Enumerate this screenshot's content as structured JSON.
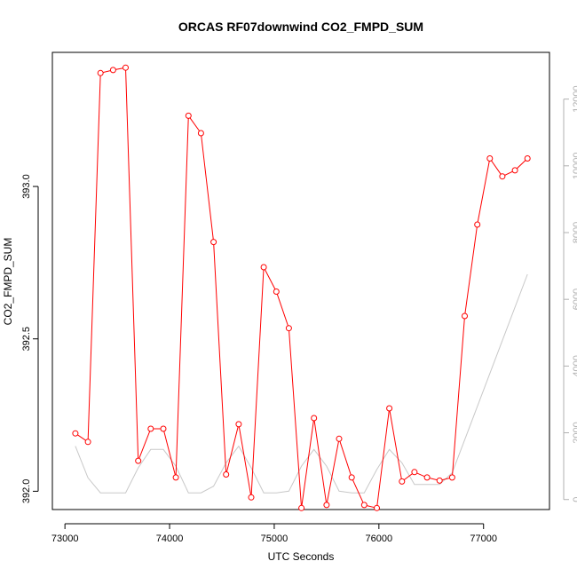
{
  "chart_data": {
    "type": "line",
    "title": "ORCAS RF07downwind CO2_FMPD_SUM",
    "xlabel": "UTC Seconds",
    "ylabel": "CO2_FMPD_SUM",
    "xlim": [
      72880,
      77630
    ],
    "ylim": [
      391.94,
      393.44
    ],
    "y2lim": [
      -300,
      13400
    ],
    "x_ticks": [
      73000,
      74000,
      75000,
      76000,
      77000
    ],
    "y_ticks": [
      392.0,
      392.5,
      393.0
    ],
    "y_tick_labels": [
      "392.0",
      "392.5",
      "393.0"
    ],
    "y2_ticks": [
      0,
      2000,
      4000,
      6000,
      8000,
      10000,
      12000
    ],
    "grid": false,
    "legend": "none",
    "colors": {
      "primary": "#ff0000",
      "secondary": "#c8c8c8",
      "axis": "#000000",
      "right_axis": "#b0b0b0"
    },
    "series": [
      {
        "axis": "left",
        "color": "#ff0000",
        "markers": "open-circle",
        "x": [
          73100,
          73220,
          73340,
          73460,
          73580,
          73700,
          73820,
          73940,
          74060,
          74180,
          74300,
          74420,
          74540,
          74660,
          74780,
          74900,
          75020,
          75140,
          75260,
          75380,
          75500,
          75620,
          75740,
          75860,
          75980,
          76100,
          76220,
          76340,
          76460,
          76580,
          76700,
          76820,
          76940,
          77060,
          77180,
          77300,
          77420
        ],
        "y": [
          392.19,
          392.162,
          393.372,
          393.382,
          393.39,
          392.1,
          392.205,
          392.205,
          392.045,
          393.232,
          393.175,
          392.818,
          392.055,
          392.22,
          391.98,
          392.735,
          392.655,
          392.535,
          391.945,
          392.24,
          391.955,
          392.172,
          392.045,
          391.955,
          391.945,
          392.272,
          392.032,
          392.063,
          392.045,
          392.035,
          392.045,
          392.575,
          392.875,
          393.092,
          393.033,
          393.053,
          393.092
        ]
      },
      {
        "axis": "right",
        "color": "#c8c8c8",
        "markers": "none",
        "x": [
          73100,
          73220,
          73340,
          73460,
          73580,
          73700,
          73820,
          73940,
          74060,
          74180,
          74300,
          74420,
          74540,
          74660,
          74780,
          74900,
          75020,
          75140,
          75260,
          75380,
          75500,
          75620,
          75740,
          75860,
          75980,
          76100,
          76220,
          76340,
          76460,
          76580,
          76700,
          77420
        ],
        "y": [
          1600,
          650,
          200,
          200,
          200,
          950,
          1500,
          1500,
          1000,
          200,
          200,
          400,
          1100,
          1600,
          950,
          200,
          200,
          250,
          1000,
          1500,
          1000,
          250,
          200,
          200,
          900,
          1500,
          1100,
          450,
          450,
          450,
          800,
          6750
        ]
      }
    ]
  }
}
